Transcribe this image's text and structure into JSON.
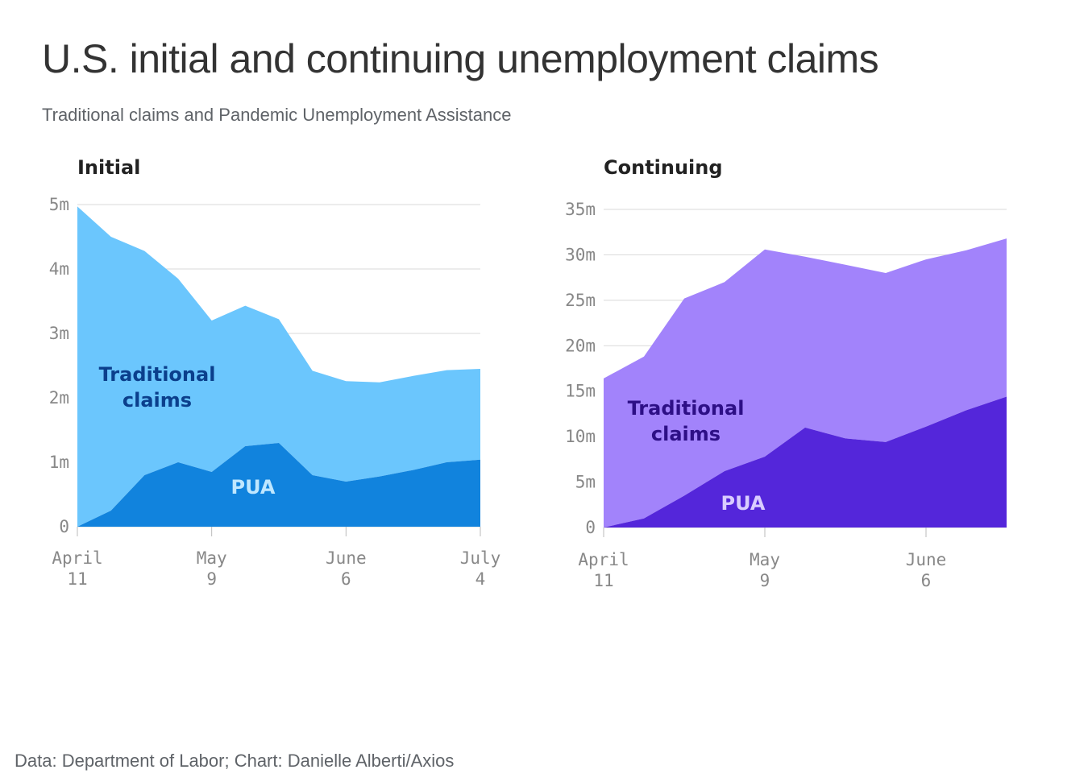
{
  "title": "U.S. initial and continuing unemployment claims",
  "subtitle": "Traditional claims and Pandemic Unemployment Assistance",
  "source": "Data: Department of Labor; Chart: Danielle Alberti/Axios",
  "colors": {
    "initial_traditional": "#6bc6fd",
    "initial_pua": "#1183dd",
    "initial_traditional_label": "#0b3f8c",
    "initial_pua_label": "#bfe7ff",
    "continuing_traditional": "#a283fb",
    "continuing_pua": "#5426da",
    "continuing_traditional_label": "#2d0f86",
    "continuing_pua_label": "#d9ccff"
  },
  "chart_data": [
    {
      "type": "area",
      "stacked": true,
      "title": "Initial",
      "x": [
        "April 11",
        "April 18",
        "April 25",
        "May 2",
        "May 9",
        "May 16",
        "May 23",
        "May 30",
        "June 6",
        "June 13",
        "June 20",
        "June 27",
        "July 4"
      ],
      "series": [
        {
          "name": "PUA",
          "values": [
            0,
            0.25,
            0.8,
            1.0,
            0.85,
            1.25,
            1.3,
            0.8,
            0.7,
            0.78,
            0.88,
            1.0,
            1.04
          ]
        },
        {
          "name": "Traditional claims",
          "values": [
            4.97,
            4.25,
            3.48,
            2.85,
            2.35,
            2.18,
            1.92,
            1.62,
            1.56,
            1.46,
            1.46,
            1.43,
            1.41
          ]
        }
      ],
      "ylim": [
        0,
        5
      ],
      "yticks": [
        "0",
        "1m",
        "2m",
        "3m",
        "4m",
        "5m"
      ],
      "ytick_values": [
        0,
        1,
        2,
        3,
        4,
        5
      ],
      "xticks": [
        {
          "line1": "April",
          "line2": "11",
          "index": 0
        },
        {
          "line1": "May",
          "line2": "9",
          "index": 4
        },
        {
          "line1": "June",
          "line2": "6",
          "index": 8
        },
        {
          "line1": "July",
          "line2": "4",
          "index": 12
        }
      ],
      "grid": true,
      "labels": {
        "traditional": [
          "Traditional",
          "claims"
        ],
        "pua": "PUA"
      }
    },
    {
      "type": "area",
      "stacked": true,
      "title": "Continuing",
      "x": [
        "April 11",
        "April 18",
        "April 25",
        "May 2",
        "May 9",
        "May 16",
        "May 23",
        "May 30",
        "June 6",
        "June 13",
        "June 20"
      ],
      "series": [
        {
          "name": "PUA",
          "values": [
            0,
            1.0,
            3.5,
            6.2,
            7.8,
            11.0,
            9.8,
            9.4,
            11.1,
            12.9,
            14.4
          ]
        },
        {
          "name": "Traditional claims",
          "values": [
            16.4,
            17.8,
            21.7,
            20.8,
            22.8,
            18.8,
            19.1,
            18.6,
            18.4,
            17.6,
            17.4
          ]
        }
      ],
      "ylim": [
        0,
        35
      ],
      "yticks": [
        "0",
        "5m",
        "10m",
        "15m",
        "20m",
        "25m",
        "30m",
        "35m"
      ],
      "ytick_values": [
        0,
        5,
        10,
        15,
        20,
        25,
        30,
        35
      ],
      "xticks": [
        {
          "line1": "April",
          "line2": "11",
          "index": 0
        },
        {
          "line1": "May",
          "line2": "9",
          "index": 4
        },
        {
          "line1": "June",
          "line2": "6",
          "index": 8
        }
      ],
      "grid": true,
      "labels": {
        "traditional": [
          "Traditional",
          "claims"
        ],
        "pua": "PUA"
      }
    }
  ]
}
